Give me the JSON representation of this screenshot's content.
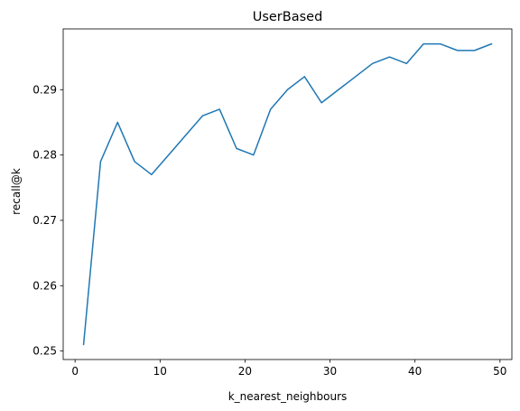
{
  "chart_data": {
    "type": "line",
    "title": "UserBased",
    "xlabel": "k_nearest_neighbours",
    "ylabel": "recall@k",
    "xlim": [
      -1.4,
      51.4
    ],
    "ylim": [
      0.2487,
      0.2993
    ],
    "xticks": [
      0,
      10,
      20,
      30,
      40,
      50
    ],
    "yticks": [
      0.25,
      0.26,
      0.27,
      0.28,
      0.29
    ],
    "ytick_labels": [
      "0.25",
      "0.26",
      "0.27",
      "0.28",
      "0.29"
    ],
    "grid": false,
    "series": [
      {
        "color": "#1f77b4",
        "x": [
          1,
          3,
          5,
          7,
          9,
          11,
          13,
          15,
          17,
          19,
          21,
          23,
          25,
          27,
          29,
          31,
          33,
          35,
          37,
          39,
          41,
          43,
          45,
          47,
          49
        ],
        "values": [
          0.251,
          0.279,
          0.285,
          0.279,
          0.277,
          0.28,
          0.283,
          0.286,
          0.287,
          0.281,
          0.28,
          0.287,
          0.29,
          0.292,
          0.288,
          0.29,
          0.292,
          0.294,
          0.295,
          0.294,
          0.297,
          0.297,
          0.296,
          0.296,
          0.297
        ]
      }
    ]
  }
}
